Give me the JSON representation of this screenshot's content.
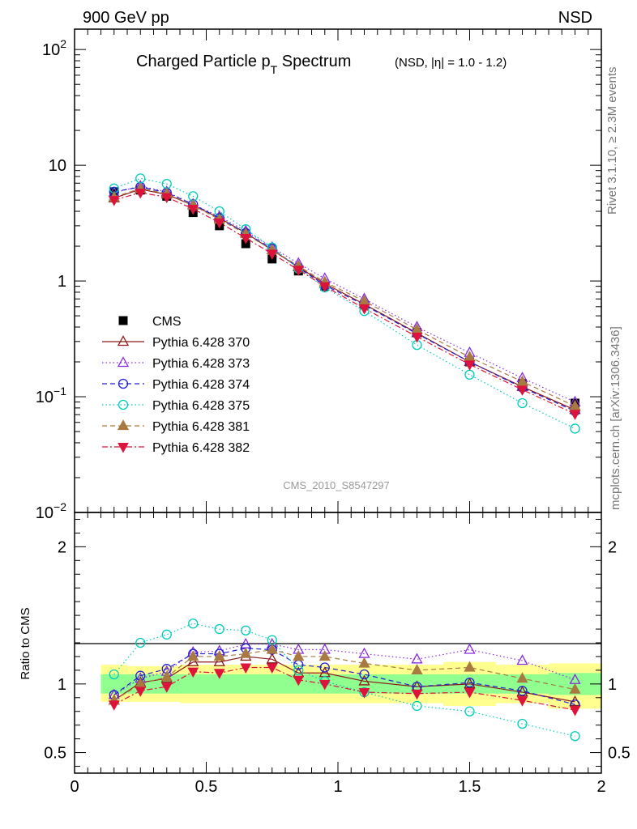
{
  "header": {
    "energy_label": "900 GeV pp",
    "process_label": "NSD",
    "side_label_top": "Rivet 3.1.10, ≥ 2.3M events",
    "side_label_bottom": "mcplots.cern.ch [arXiv:1306.3436]"
  },
  "chart_data": [
    {
      "type": "scatter",
      "title_main": "Charged Particle p",
      "title_sub": "T",
      "title_rest": " Spectrum",
      "title_extra": "(NSD, |η| = 1.0 - 1.2)",
      "analysis_label": "CMS_2010_S8547297",
      "xlim": [
        0,
        2
      ],
      "ylim": [
        0.01,
        150
      ],
      "yscale": "log",
      "yticks": [
        {
          "label": "10⁻²",
          "base": "10",
          "exp": "−2",
          "value": 0.01
        },
        {
          "label": "10⁻¹",
          "base": "10",
          "exp": "−1",
          "value": 0.1
        },
        {
          "label": "1",
          "value": 1
        },
        {
          "label": "10",
          "value": 10
        },
        {
          "label": "10²",
          "base": "10",
          "exp": "2",
          "value": 100
        }
      ],
      "x": [
        0.15,
        0.25,
        0.35,
        0.45,
        0.55,
        0.65,
        0.75,
        0.85,
        0.95,
        1.1,
        1.3,
        1.5,
        1.7,
        1.9
      ],
      "series": [
        {
          "name": "CMS",
          "color": "#000000",
          "marker": "square-filled",
          "dash": "none",
          "values": [
            5.9,
            6.1,
            5.4,
            3.9,
            3.0,
            2.1,
            1.55,
            1.22,
            0.9,
            0.62,
            0.36,
            0.2,
            0.13,
            0.088
          ]
        },
        {
          "name": "Pythia 6.428 370",
          "color": "#8b1a1a",
          "marker": "triangle-open",
          "dash": "solid",
          "values": [
            5.2,
            6.2,
            5.6,
            4.5,
            3.5,
            2.6,
            1.85,
            1.32,
            0.95,
            0.63,
            0.355,
            0.2,
            0.122,
            0.077
          ]
        },
        {
          "name": "Pythia 6.428 373",
          "color": "#8a2be2",
          "marker": "triangle-open",
          "dash": "dotted",
          "values": [
            5.8,
            6.6,
            5.9,
            4.6,
            3.6,
            2.7,
            1.95,
            1.42,
            1.05,
            0.7,
            0.4,
            0.24,
            0.145,
            0.09
          ]
        },
        {
          "name": "Pythia 6.428 374",
          "color": "#2020d0",
          "marker": "circle-open",
          "dash": "dashed",
          "values": [
            5.9,
            6.5,
            5.8,
            4.6,
            3.5,
            2.6,
            1.9,
            1.3,
            0.92,
            0.62,
            0.35,
            0.2,
            0.12,
            0.075
          ]
        },
        {
          "name": "Pythia 6.428 375",
          "color": "#00ccbb",
          "marker": "circle-open",
          "dash": "dotted",
          "values": [
            6.3,
            7.7,
            6.9,
            5.4,
            4.0,
            2.8,
            1.95,
            1.28,
            0.88,
            0.55,
            0.28,
            0.155,
            0.088,
            0.053
          ]
        },
        {
          "name": "Pythia 6.428 381",
          "color": "#a87a42",
          "marker": "triangle-filled",
          "dash": "dashed",
          "values": [
            5.3,
            6.3,
            5.7,
            4.5,
            3.4,
            2.55,
            1.85,
            1.35,
            0.98,
            0.67,
            0.38,
            0.22,
            0.135,
            0.083
          ]
        },
        {
          "name": "Pythia 6.428 382",
          "color": "#dc143c",
          "marker": "triangle-down-filled",
          "dash": "dashdot",
          "values": [
            5.0,
            5.8,
            5.3,
            4.2,
            3.2,
            2.35,
            1.72,
            1.25,
            0.9,
            0.58,
            0.33,
            0.19,
            0.115,
            0.071
          ]
        }
      ]
    },
    {
      "type": "scatter",
      "ylabel": "Ratio to CMS",
      "xlim": [
        0,
        2
      ],
      "ylim": [
        0.35,
        2.25
      ],
      "xticks": [
        {
          "label": "0",
          "value": 0
        },
        {
          "label": "0.5",
          "value": 0.5
        },
        {
          "label": "1",
          "value": 1
        },
        {
          "label": "1.5",
          "value": 1.5
        },
        {
          "label": "2",
          "value": 2
        }
      ],
      "yticks": [
        {
          "label": "0.5",
          "value": 0.5
        },
        {
          "label": "1",
          "value": 1
        },
        {
          "label": "2",
          "value": 2
        }
      ],
      "bands": {
        "x_edges": [
          0.1,
          0.2,
          0.3,
          0.4,
          0.5,
          0.6,
          0.7,
          0.8,
          0.9,
          1.0,
          1.2,
          1.4,
          1.6,
          1.8,
          2.0
        ],
        "stat_color": "#90ff90",
        "syst_color": "#ffff90",
        "stat_lo": [
          0.93,
          0.93,
          0.93,
          0.93,
          0.93,
          0.93,
          0.93,
          0.93,
          0.93,
          0.93,
          0.93,
          0.93,
          0.93,
          0.92
        ],
        "stat_hi": [
          1.07,
          1.07,
          1.07,
          1.07,
          1.07,
          1.07,
          1.07,
          1.07,
          1.07,
          1.07,
          1.07,
          1.07,
          1.07,
          1.08
        ],
        "syst_lo": [
          0.87,
          0.87,
          0.87,
          0.86,
          0.86,
          0.86,
          0.86,
          0.86,
          0.86,
          0.86,
          0.86,
          0.84,
          0.86,
          0.82
        ],
        "syst_hi": [
          1.14,
          1.13,
          1.13,
          1.14,
          1.14,
          1.14,
          1.14,
          1.14,
          1.14,
          1.14,
          1.14,
          1.16,
          1.14,
          1.15
        ]
      },
      "series": [
        {
          "name": "Pythia 6.428 370",
          "values": [
            0.88,
            1.01,
            1.04,
            1.16,
            1.16,
            1.2,
            1.18,
            1.08,
            1.08,
            1.02,
            0.98,
            1.0,
            0.94,
            0.87
          ]
        },
        {
          "name": "Pythia 6.428 373",
          "values": [
            0.92,
            1.04,
            1.09,
            1.23,
            1.24,
            1.29,
            1.29,
            1.25,
            1.25,
            1.22,
            1.18,
            1.25,
            1.17,
            1.03
          ]
        },
        {
          "name": "Pythia 6.428 374",
          "values": [
            0.92,
            1.06,
            1.11,
            1.22,
            1.22,
            1.26,
            1.25,
            1.14,
            1.12,
            1.07,
            0.98,
            1.01,
            0.95,
            0.85
          ]
        },
        {
          "name": "Pythia 6.428 375",
          "values": [
            1.07,
            1.3,
            1.36,
            1.44,
            1.4,
            1.39,
            1.32,
            1.1,
            1.02,
            0.94,
            0.84,
            0.8,
            0.71,
            0.62
          ]
        },
        {
          "name": "Pythia 6.428 381",
          "values": [
            0.88,
            1.0,
            1.05,
            1.2,
            1.2,
            1.22,
            1.25,
            1.2,
            1.2,
            1.15,
            1.1,
            1.12,
            1.04,
            0.96
          ]
        },
        {
          "name": "Pythia 6.428 382",
          "values": [
            0.85,
            0.95,
            0.98,
            1.09,
            1.08,
            1.12,
            1.12,
            1.03,
            1.0,
            0.94,
            0.93,
            0.94,
            0.88,
            0.81
          ]
        }
      ]
    }
  ]
}
